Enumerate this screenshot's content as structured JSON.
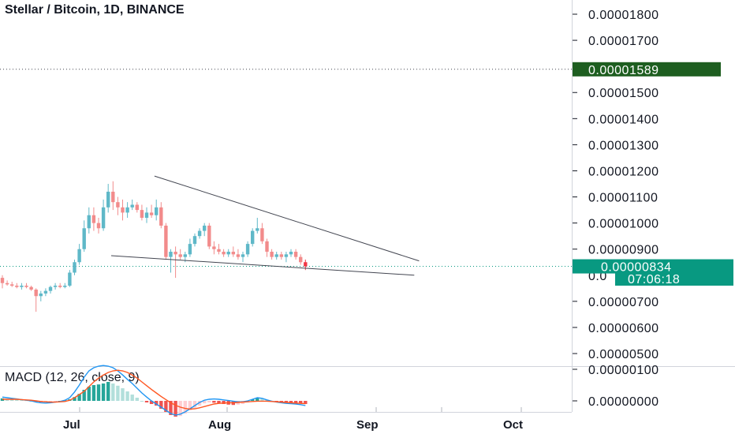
{
  "header": {
    "title": "Stellar / Bitcoin, 1D, BINANCE"
  },
  "macd_header": {
    "label": "MACD (12, 26, close, 9)"
  },
  "price_axis": {
    "ticks": [
      "0.00001800",
      "0.00001700",
      "0.00001500",
      "0.00001400",
      "0.00001300",
      "0.00001200",
      "0.00001100",
      "0.00001000",
      "0.00000900",
      "0.00000700",
      "0.00000600",
      "0.00000500"
    ],
    "tick_values": [
      18.0,
      17.0,
      15.0,
      14.0,
      13.0,
      12.0,
      11.0,
      10.0,
      9.0,
      7.0,
      6.0,
      5.0
    ],
    "partial_tick": "0.0"
  },
  "macd_axis": {
    "ticks": [
      "0.00000100",
      "0.00000000"
    ],
    "tick_values": [
      1.0,
      0.0
    ]
  },
  "time_axis": {
    "labels": [
      "Jul",
      "Aug",
      "Sep",
      "Oct"
    ]
  },
  "price_tags": {
    "high_line": {
      "label": "0.00001589",
      "value": 15.89,
      "color": "#1e5e20"
    },
    "last_price": {
      "label": "0.00000834",
      "value": 8.34,
      "color": "#089981"
    },
    "countdown": {
      "label": "07:06:18",
      "color": "#089981"
    }
  },
  "colors": {
    "up": "#089981",
    "down": "#f23645",
    "up_light": "#5fb8c8",
    "down_light": "#f28b8b",
    "macd_line": "#2196f3",
    "signal_line": "#ff5722",
    "hist_pos_strong": "#26a69a",
    "hist_pos_weak": "#b2dfdb",
    "hist_neg_strong": "#ef5350",
    "hist_neg_weak": "#ffcdd2",
    "trendline": "#434651"
  },
  "chart_data": {
    "type": "candlestick",
    "title": "Stellar / Bitcoin, 1D, BINANCE",
    "symbol": "XLM/BTC",
    "interval": "1D",
    "exchange": "BINANCE",
    "unit": "1e-8 BTC (satoshi, axis prints 0.000xxxxx)",
    "ylim": [
      3.6,
      18.6
    ],
    "candles": [
      [
        7.9,
        8.0,
        7.5,
        7.7
      ],
      [
        7.7,
        7.8,
        7.6,
        7.65
      ],
      [
        7.65,
        7.75,
        7.55,
        7.6
      ],
      [
        7.6,
        7.7,
        7.5,
        7.55
      ],
      [
        7.55,
        7.7,
        7.45,
        7.6
      ],
      [
        7.6,
        7.7,
        7.5,
        7.55
      ],
      [
        7.55,
        7.6,
        7.4,
        7.45
      ],
      [
        7.45,
        7.5,
        6.6,
        7.2
      ],
      [
        7.2,
        7.4,
        7.0,
        7.3
      ],
      [
        7.3,
        7.5,
        7.2,
        7.4
      ],
      [
        7.4,
        7.6,
        7.3,
        7.55
      ],
      [
        7.55,
        7.7,
        7.45,
        7.6
      ],
      [
        7.6,
        7.7,
        7.5,
        7.55
      ],
      [
        7.55,
        7.7,
        7.5,
        7.6
      ],
      [
        7.6,
        8.2,
        7.55,
        8.1
      ],
      [
        8.1,
        8.6,
        8.0,
        8.5
      ],
      [
        8.5,
        9.2,
        8.4,
        9.0
      ],
      [
        9.0,
        10.1,
        8.9,
        9.8
      ],
      [
        9.8,
        10.6,
        9.6,
        10.3
      ],
      [
        10.3,
        10.6,
        9.7,
        10.0
      ],
      [
        10.0,
        10.2,
        9.6,
        9.8
      ],
      [
        9.8,
        10.9,
        9.7,
        10.6
      ],
      [
        10.6,
        11.5,
        10.4,
        11.2
      ],
      [
        11.2,
        11.6,
        10.5,
        10.8
      ],
      [
        10.8,
        11.0,
        10.3,
        10.6
      ],
      [
        10.6,
        10.9,
        10.1,
        10.4
      ],
      [
        10.4,
        10.8,
        10.2,
        10.6
      ],
      [
        10.6,
        10.9,
        10.5,
        10.7
      ],
      [
        10.7,
        10.8,
        10.4,
        10.5
      ],
      [
        10.5,
        10.7,
        10.1,
        10.2
      ],
      [
        10.2,
        10.6,
        10.0,
        10.4
      ],
      [
        10.4,
        10.7,
        10.2,
        10.3
      ],
      [
        10.3,
        10.9,
        10.1,
        10.6
      ],
      [
        10.6,
        10.8,
        9.8,
        9.9
      ],
      [
        9.9,
        10.0,
        8.6,
        8.7
      ],
      [
        8.7,
        9.0,
        8.1,
        8.9
      ],
      [
        8.9,
        9.1,
        7.9,
        8.8
      ],
      [
        8.8,
        9.0,
        8.6,
        8.7
      ],
      [
        8.7,
        8.9,
        8.5,
        8.8
      ],
      [
        8.8,
        9.4,
        8.7,
        9.2
      ],
      [
        9.2,
        9.6,
        9.1,
        9.5
      ],
      [
        9.5,
        9.8,
        9.4,
        9.7
      ],
      [
        9.7,
        10.0,
        9.5,
        9.9
      ],
      [
        9.9,
        10.0,
        9.0,
        9.1
      ],
      [
        9.1,
        9.3,
        8.8,
        9.0
      ],
      [
        9.0,
        9.2,
        8.8,
        8.9
      ],
      [
        8.9,
        9.0,
        8.7,
        8.8
      ],
      [
        8.8,
        9.0,
        8.7,
        8.9
      ],
      [
        8.9,
        9.1,
        8.7,
        8.8
      ],
      [
        8.8,
        9.0,
        8.6,
        8.7
      ],
      [
        8.7,
        8.9,
        8.5,
        8.8
      ],
      [
        8.8,
        9.3,
        8.7,
        9.2
      ],
      [
        9.2,
        9.8,
        9.1,
        9.7
      ],
      [
        9.7,
        10.2,
        9.6,
        9.8
      ],
      [
        9.8,
        10.0,
        9.2,
        9.3
      ],
      [
        9.3,
        9.4,
        8.7,
        8.9
      ],
      [
        8.9,
        9.0,
        8.6,
        8.7
      ],
      [
        8.7,
        8.9,
        8.6,
        8.8
      ],
      [
        8.8,
        8.9,
        8.6,
        8.7
      ],
      [
        8.7,
        8.9,
        8.5,
        8.8
      ],
      [
        8.8,
        9.0,
        8.7,
        8.9
      ],
      [
        8.9,
        9.0,
        8.6,
        8.7
      ],
      [
        8.7,
        8.8,
        8.4,
        8.5
      ],
      [
        8.5,
        8.6,
        8.2,
        8.34
      ]
    ],
    "macd_histogram": [
      0.08,
      0.06,
      0.05,
      0.04,
      0.03,
      0.02,
      0.0,
      -0.03,
      -0.04,
      -0.03,
      -0.02,
      -0.01,
      0.0,
      0.02,
      0.05,
      0.12,
      0.22,
      0.35,
      0.45,
      0.5,
      0.52,
      0.55,
      0.6,
      0.55,
      0.48,
      0.4,
      0.3,
      0.2,
      0.1,
      0.0,
      -0.05,
      -0.1,
      -0.15,
      -0.25,
      -0.35,
      -0.45,
      -0.5,
      -0.48,
      -0.4,
      -0.3,
      -0.22,
      -0.15,
      -0.08,
      -0.05,
      -0.06,
      -0.08,
      -0.1,
      -0.12,
      -0.13,
      -0.12,
      -0.1,
      -0.05,
      0.05,
      0.1,
      0.08,
      0.03,
      0.0,
      -0.02,
      -0.04,
      -0.05,
      -0.06,
      -0.07,
      -0.08,
      -0.1
    ],
    "macd_line": [
      0.12,
      0.1,
      0.08,
      0.06,
      0.04,
      0.02,
      0.0,
      -0.04,
      -0.06,
      -0.07,
      -0.06,
      -0.04,
      -0.02,
      0.02,
      0.1,
      0.28,
      0.5,
      0.75,
      0.95,
      1.05,
      1.1,
      1.12,
      1.1,
      1.05,
      0.95,
      0.82,
      0.68,
      0.55,
      0.4,
      0.25,
      0.12,
      0.0,
      -0.1,
      -0.2,
      -0.3,
      -0.4,
      -0.45,
      -0.42,
      -0.35,
      -0.25,
      -0.15,
      -0.05,
      0.02,
      0.05,
      0.06,
      0.05,
      0.03,
      0.01,
      -0.01,
      -0.03,
      -0.03,
      0.0,
      0.05,
      0.1,
      0.08,
      0.03,
      -0.01,
      -0.04,
      -0.06,
      -0.08,
      -0.09,
      -0.1,
      -0.12,
      -0.15
    ],
    "signal_line": [
      0.05,
      0.05,
      0.05,
      0.05,
      0.04,
      0.03,
      0.02,
      0.0,
      -0.02,
      -0.03,
      -0.04,
      -0.04,
      -0.03,
      -0.02,
      0.02,
      0.1,
      0.2,
      0.3,
      0.45,
      0.6,
      0.72,
      0.82,
      0.9,
      0.95,
      0.97,
      0.95,
      0.9,
      0.82,
      0.72,
      0.6,
      0.48,
      0.36,
      0.25,
      0.14,
      0.04,
      -0.06,
      -0.14,
      -0.2,
      -0.24,
      -0.26,
      -0.25,
      -0.22,
      -0.18,
      -0.14,
      -0.1,
      -0.08,
      -0.07,
      -0.06,
      -0.06,
      -0.05,
      -0.04,
      -0.03,
      -0.02,
      -0.01,
      -0.01,
      -0.01,
      -0.02,
      -0.03,
      -0.04,
      -0.05,
      -0.06,
      -0.07,
      -0.08,
      -0.09
    ],
    "trendlines": [
      {
        "name": "upper",
        "from": {
          "index": 29,
          "price": 11.8
        },
        "to": {
          "index": 84,
          "price": 8.55
        }
      },
      {
        "name": "lower",
        "from": {
          "index": 20,
          "price": 8.75
        },
        "to": {
          "index": 83,
          "price": 8.0
        }
      }
    ],
    "grid": false,
    "legend": "none"
  }
}
